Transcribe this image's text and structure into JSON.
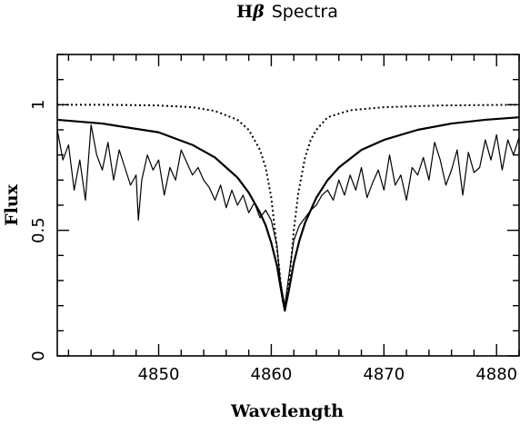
{
  "chart_data": {
    "type": "line",
    "title": {
      "prefix": "H",
      "symbol": "β",
      "suffix": "Spectra"
    },
    "xlabel": "Wavelength",
    "ylabel": "Flux",
    "xlim": [
      4841,
      4882
    ],
    "ylim": [
      0,
      1.2
    ],
    "x_major_ticks": [
      4850,
      4860,
      4870,
      4880
    ],
    "x_tick_labels": [
      "4850",
      "4860",
      "4870",
      "4880"
    ],
    "y_major_ticks": [
      0,
      0.5,
      1
    ],
    "y_tick_labels": [
      "0",
      "0.5",
      "1"
    ],
    "grid": false,
    "legend": "none",
    "series": [
      {
        "style": "dotted",
        "color": "#000000",
        "x": [
          4841,
          4845,
          4850,
          4853,
          4855,
          4857,
          4858,
          4859,
          4859.5,
          4860,
          4860.4,
          4860.7,
          4861,
          4861.2,
          4861.4,
          4861.7,
          4862,
          4862.4,
          4863,
          4863.5,
          4864,
          4865,
          4867,
          4870,
          4875,
          4882
        ],
        "y": [
          1.0,
          1.0,
          0.997,
          0.99,
          0.975,
          0.94,
          0.9,
          0.82,
          0.75,
          0.63,
          0.47,
          0.35,
          0.22,
          0.2,
          0.22,
          0.35,
          0.5,
          0.65,
          0.79,
          0.86,
          0.9,
          0.95,
          0.978,
          0.99,
          0.997,
          1.0
        ]
      },
      {
        "style": "solid",
        "color": "#000000",
        "x": [
          4841,
          4845,
          4850,
          4853,
          4855,
          4857,
          4858,
          4859,
          4859.5,
          4860,
          4860.5,
          4860.8,
          4861.2,
          4861.6,
          4862,
          4862.5,
          4863,
          4864,
          4865,
          4866,
          4868,
          4870,
          4873,
          4876,
          4879,
          4882
        ],
        "y": [
          0.94,
          0.925,
          0.89,
          0.84,
          0.79,
          0.71,
          0.65,
          0.57,
          0.52,
          0.45,
          0.36,
          0.28,
          0.18,
          0.27,
          0.37,
          0.46,
          0.53,
          0.63,
          0.7,
          0.75,
          0.82,
          0.86,
          0.9,
          0.925,
          0.94,
          0.95
        ]
      },
      {
        "style": "solid-thin",
        "color": "#000000",
        "x": [
          4841,
          4841.5,
          4842,
          4842.5,
          4843,
          4843.5,
          4844,
          4844.5,
          4845,
          4845.5,
          4846,
          4846.5,
          4847,
          4847.5,
          4848,
          4848.2,
          4848.5,
          4849,
          4849.5,
          4850,
          4850.5,
          4851,
          4851.5,
          4852,
          4852.5,
          4853,
          4853.5,
          4854,
          4854.5,
          4855,
          4855.5,
          4856,
          4856.5,
          4857,
          4857.5,
          4858,
          4858.5,
          4859,
          4859.5,
          4860,
          4860.5,
          4860.8,
          4861.2,
          4861.5,
          4862,
          4862.5,
          4863,
          4863.5,
          4864,
          4864.5,
          4865,
          4865.5,
          4866,
          4866.5,
          4867,
          4867.5,
          4868,
          4868.5,
          4869,
          4869.5,
          4870,
          4870.5,
          4871,
          4871.5,
          4872,
          4872.5,
          4873,
          4873.5,
          4874,
          4874.5,
          4875,
          4875.5,
          4876,
          4876.5,
          4877,
          4877.5,
          4878,
          4878.5,
          4879,
          4879.5,
          4880,
          4880.5,
          4881,
          4881.5,
          4882
        ],
        "y": [
          0.9,
          0.78,
          0.84,
          0.66,
          0.78,
          0.62,
          0.92,
          0.8,
          0.74,
          0.85,
          0.7,
          0.82,
          0.75,
          0.68,
          0.72,
          0.54,
          0.7,
          0.8,
          0.74,
          0.78,
          0.64,
          0.75,
          0.7,
          0.82,
          0.77,
          0.72,
          0.75,
          0.7,
          0.67,
          0.62,
          0.68,
          0.59,
          0.66,
          0.6,
          0.64,
          0.57,
          0.61,
          0.55,
          0.58,
          0.54,
          0.44,
          0.3,
          0.2,
          0.3,
          0.46,
          0.52,
          0.55,
          0.58,
          0.6,
          0.64,
          0.66,
          0.62,
          0.7,
          0.64,
          0.72,
          0.66,
          0.75,
          0.63,
          0.69,
          0.74,
          0.66,
          0.8,
          0.68,
          0.72,
          0.62,
          0.75,
          0.72,
          0.79,
          0.7,
          0.85,
          0.78,
          0.68,
          0.74,
          0.82,
          0.64,
          0.81,
          0.73,
          0.75,
          0.86,
          0.78,
          0.88,
          0.74,
          0.86,
          0.8,
          0.87
        ]
      }
    ]
  }
}
